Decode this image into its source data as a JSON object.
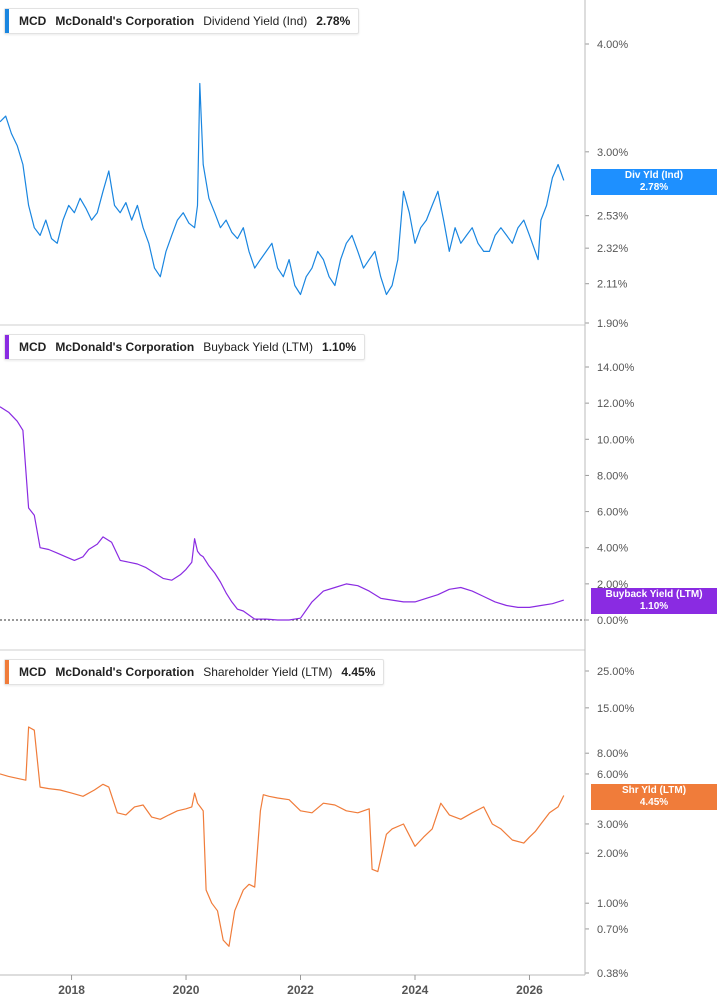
{
  "panels": [
    {
      "ticker": "MCD",
      "company": "McDonald's Corporation",
      "metric": "Dividend Yield (Ind)",
      "last": "2.78%",
      "tag_label": "Div Yld (Ind)",
      "tag_value": "2.78%",
      "color": "#1a86e0",
      "tag_color": "#1e90ff"
    },
    {
      "ticker": "MCD",
      "company": "McDonald's Corporation",
      "metric": "Buyback Yield (LTM)",
      "last": "1.10%",
      "tag_label": "Buyback Yield (LTM)",
      "tag_value": "1.10%",
      "color": "#8a2be2",
      "tag_color": "#8a2be2"
    },
    {
      "ticker": "MCD",
      "company": "McDonald's Corporation",
      "metric": "Shareholder Yield (LTM)",
      "last": "4.45%",
      "tag_label": "Shr Yld (LTM)",
      "tag_value": "4.45%",
      "color": "#f07c3a",
      "tag_color": "#f07c3a"
    }
  ],
  "chart_data": [
    {
      "type": "line",
      "title": "MCD McDonald's Corporation Dividend Yield (Ind) 2.78%",
      "scale": "log",
      "ylim": [
        1.9,
        4.4
      ],
      "yticks": [
        4.0,
        3.0,
        2.53,
        2.32,
        2.11,
        1.9
      ],
      "ytick_labels": [
        "4.00%",
        "3.00%",
        "2.53%",
        "2.32%",
        "2.11%",
        "1.90%"
      ],
      "series": [
        {
          "name": "Div Yld (Ind)",
          "x": [
            2016.75,
            2016.85,
            2016.95,
            2017.05,
            2017.15,
            2017.25,
            2017.35,
            2017.45,
            2017.55,
            2017.65,
            2017.75,
            2017.85,
            2017.95,
            2018.05,
            2018.15,
            2018.25,
            2018.35,
            2018.45,
            2018.55,
            2018.65,
            2018.75,
            2018.85,
            2018.95,
            2019.05,
            2019.15,
            2019.25,
            2019.35,
            2019.45,
            2019.55,
            2019.65,
            2019.75,
            2019.85,
            2019.95,
            2020.05,
            2020.15,
            2020.2,
            2020.24,
            2020.3,
            2020.4,
            2020.5,
            2020.6,
            2020.7,
            2020.8,
            2020.9,
            2021.0,
            2021.1,
            2021.2,
            2021.3,
            2021.4,
            2021.5,
            2021.6,
            2021.7,
            2021.8,
            2021.9,
            2022.0,
            2022.1,
            2022.2,
            2022.3,
            2022.4,
            2022.5,
            2022.6,
            2022.7,
            2022.8,
            2022.9,
            2023.0,
            2023.1,
            2023.2,
            2023.3,
            2023.4,
            2023.5,
            2023.6,
            2023.7,
            2023.8,
            2023.9,
            2024.0,
            2024.1,
            2024.2,
            2024.3,
            2024.4,
            2024.5,
            2024.6,
            2024.7,
            2024.8,
            2024.9,
            2025.0,
            2025.1,
            2025.2,
            2025.3,
            2025.4,
            2025.5,
            2025.6,
            2025.7,
            2025.8,
            2025.9,
            2026.0,
            2026.1,
            2026.15,
            2026.2,
            2026.3,
            2026.4,
            2026.5,
            2026.6
          ],
          "values": [
            3.25,
            3.3,
            3.15,
            3.05,
            2.9,
            2.6,
            2.45,
            2.4,
            2.5,
            2.38,
            2.35,
            2.5,
            2.6,
            2.55,
            2.65,
            2.58,
            2.5,
            2.55,
            2.7,
            2.85,
            2.6,
            2.55,
            2.62,
            2.5,
            2.6,
            2.45,
            2.35,
            2.2,
            2.15,
            2.3,
            2.4,
            2.5,
            2.55,
            2.48,
            2.45,
            2.6,
            3.6,
            2.9,
            2.65,
            2.55,
            2.45,
            2.5,
            2.42,
            2.38,
            2.45,
            2.3,
            2.2,
            2.25,
            2.3,
            2.35,
            2.2,
            2.15,
            2.25,
            2.1,
            2.05,
            2.15,
            2.2,
            2.3,
            2.25,
            2.15,
            2.1,
            2.25,
            2.35,
            2.4,
            2.3,
            2.2,
            2.25,
            2.3,
            2.15,
            2.05,
            2.1,
            2.25,
            2.7,
            2.55,
            2.35,
            2.45,
            2.5,
            2.6,
            2.7,
            2.5,
            2.3,
            2.45,
            2.35,
            2.4,
            2.45,
            2.35,
            2.3,
            2.3,
            2.4,
            2.45,
            2.4,
            2.35,
            2.45,
            2.5,
            2.4,
            2.3,
            2.25,
            2.5,
            2.6,
            2.8,
            2.9,
            2.78
          ]
        }
      ]
    },
    {
      "type": "line",
      "title": "MCD McDonald's Corporation Buyback Yield (LTM) 1.10%",
      "scale": "linear",
      "ylim": [
        0,
        15
      ],
      "yticks": [
        14,
        12,
        10,
        8,
        6,
        4,
        2,
        0
      ],
      "ytick_labels": [
        "14.00%",
        "12.00%",
        "10.00%",
        "8.00%",
        "6.00%",
        "4.00%",
        "2.00%",
        "0.00%"
      ],
      "series": [
        {
          "name": "Buyback Yield (LTM)",
          "x": [
            2016.75,
            2016.9,
            2017.05,
            2017.15,
            2017.25,
            2017.35,
            2017.45,
            2017.6,
            2017.75,
            2017.9,
            2018.05,
            2018.2,
            2018.3,
            2018.45,
            2018.55,
            2018.7,
            2018.85,
            2019.0,
            2019.15,
            2019.3,
            2019.45,
            2019.6,
            2019.75,
            2019.9,
            2020.0,
            2020.1,
            2020.15,
            2020.2,
            2020.25,
            2020.3,
            2020.4,
            2020.5,
            2020.6,
            2020.7,
            2020.8,
            2020.9,
            2021.0,
            2021.2,
            2021.4,
            2021.6,
            2021.8,
            2022.0,
            2022.2,
            2022.4,
            2022.6,
            2022.8,
            2023.0,
            2023.2,
            2023.4,
            2023.6,
            2023.8,
            2024.0,
            2024.2,
            2024.4,
            2024.6,
            2024.8,
            2025.0,
            2025.2,
            2025.4,
            2025.6,
            2025.8,
            2026.0,
            2026.2,
            2026.4,
            2026.6
          ],
          "values": [
            11.8,
            11.5,
            11.0,
            10.5,
            6.2,
            5.8,
            4.0,
            3.9,
            3.7,
            3.5,
            3.3,
            3.5,
            3.9,
            4.2,
            4.6,
            4.3,
            3.3,
            3.2,
            3.1,
            2.9,
            2.6,
            2.3,
            2.2,
            2.5,
            2.8,
            3.2,
            4.5,
            3.8,
            3.6,
            3.5,
            3.0,
            2.6,
            2.1,
            1.5,
            1.0,
            0.6,
            0.5,
            0.05,
            0.05,
            0.0,
            0.0,
            0.1,
            1.0,
            1.6,
            1.8,
            2.0,
            1.9,
            1.6,
            1.2,
            1.1,
            1.0,
            1.0,
            1.2,
            1.4,
            1.7,
            1.8,
            1.6,
            1.3,
            1.0,
            0.8,
            0.7,
            0.7,
            0.8,
            0.9,
            1.1
          ]
        }
      ]
    },
    {
      "type": "line",
      "title": "MCD McDonald's Corporation Shareholder Yield (LTM) 4.45%",
      "scale": "log",
      "ylim": [
        0.38,
        30
      ],
      "yticks": [
        25,
        15,
        8,
        6,
        3,
        2,
        1,
        0.7,
        0.38
      ],
      "ytick_labels": [
        "25.00%",
        "15.00%",
        "8.00%",
        "6.00%",
        "3.00%",
        "2.00%",
        "1.00%",
        "0.70%",
        "0.38%"
      ],
      "series": [
        {
          "name": "Shr Yld (LTM)",
          "x": [
            2016.75,
            2016.9,
            2017.1,
            2017.2,
            2017.25,
            2017.35,
            2017.45,
            2017.6,
            2017.8,
            2018.0,
            2018.2,
            2018.4,
            2018.55,
            2018.65,
            2018.8,
            2018.95,
            2019.1,
            2019.25,
            2019.4,
            2019.55,
            2019.7,
            2019.85,
            2020.0,
            2020.1,
            2020.15,
            2020.2,
            2020.25,
            2020.3,
            2020.35,
            2020.45,
            2020.55,
            2020.65,
            2020.75,
            2020.85,
            2021.0,
            2021.1,
            2021.2,
            2021.3,
            2021.35,
            2021.45,
            2021.6,
            2021.8,
            2022.0,
            2022.2,
            2022.4,
            2022.6,
            2022.8,
            2023.0,
            2023.1,
            2023.2,
            2023.25,
            2023.35,
            2023.5,
            2023.6,
            2023.8,
            2024.0,
            2024.15,
            2024.3,
            2024.45,
            2024.6,
            2024.8,
            2025.0,
            2025.2,
            2025.35,
            2025.5,
            2025.7,
            2025.9,
            2026.0,
            2026.1,
            2026.2,
            2026.35,
            2026.5,
            2026.6
          ],
          "values": [
            6.0,
            5.8,
            5.6,
            5.5,
            11.5,
            11.0,
            5.0,
            4.9,
            4.8,
            4.6,
            4.4,
            4.8,
            5.2,
            5.0,
            3.5,
            3.4,
            3.8,
            3.9,
            3.3,
            3.2,
            3.4,
            3.6,
            3.7,
            3.8,
            4.6,
            4.0,
            3.8,
            3.6,
            1.2,
            1.0,
            0.9,
            0.6,
            0.55,
            0.9,
            1.2,
            1.3,
            1.25,
            3.6,
            4.5,
            4.4,
            4.3,
            4.2,
            3.6,
            3.5,
            4.0,
            3.9,
            3.6,
            3.5,
            3.6,
            3.7,
            1.6,
            1.55,
            2.6,
            2.8,
            3.0,
            2.2,
            2.5,
            2.8,
            4.0,
            3.4,
            3.2,
            3.5,
            3.8,
            3.0,
            2.8,
            2.4,
            2.3,
            2.5,
            2.7,
            3.0,
            3.5,
            3.8,
            4.45
          ]
        }
      ]
    }
  ],
  "x_axis": {
    "range": [
      2016.75,
      2026.97
    ],
    "ticks": [
      2018,
      2020,
      2022,
      2024,
      2026
    ],
    "labels": [
      "2018",
      "2020",
      "2022",
      "2024",
      "2026"
    ]
  }
}
